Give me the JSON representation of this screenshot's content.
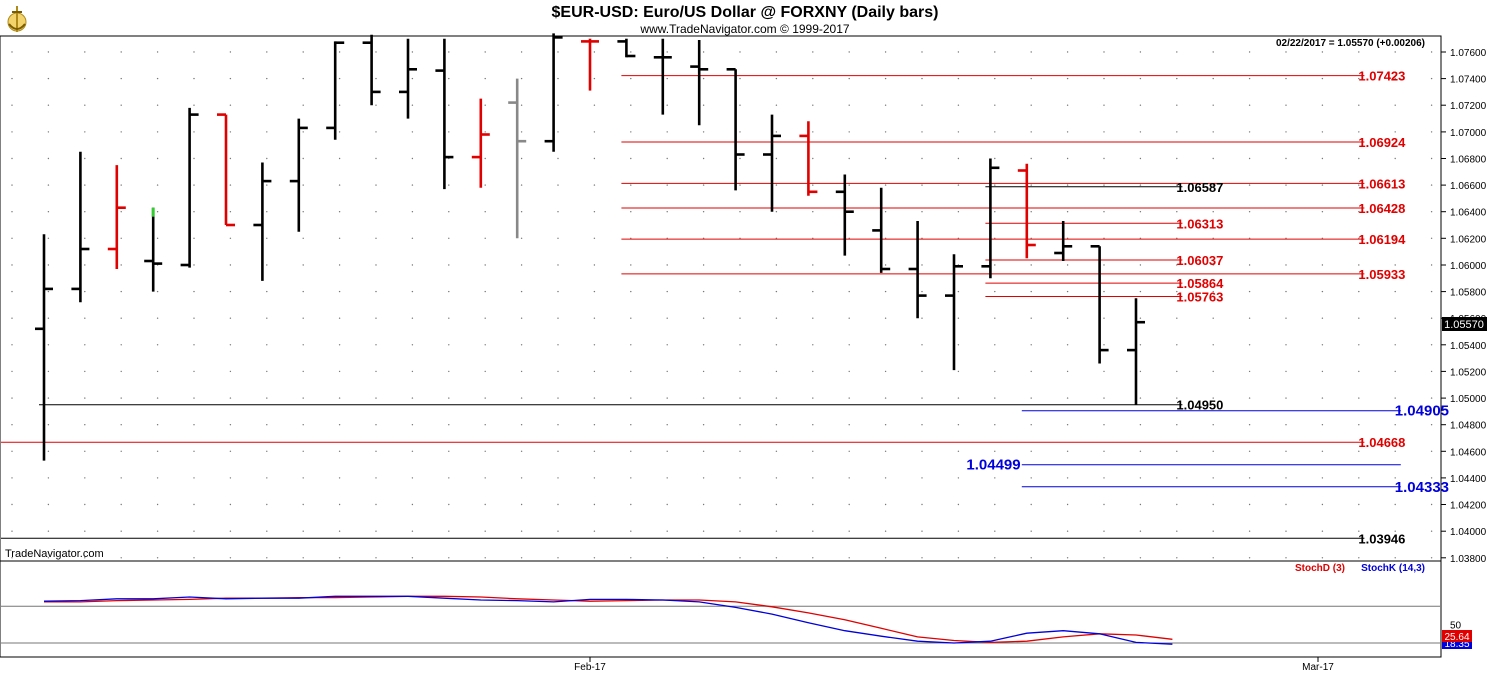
{
  "header": {
    "title": "$EUR-USD:  Euro/US Dollar @ FORXNY  (Daily bars)",
    "subtitle": "www.TradeNavigator.com © 1999-2017",
    "quote": "02/22/2017 = 1.05570 (+0.00206)",
    "watermark": "TradeNavigator.com",
    "last_price_label": "1.05570"
  },
  "colors": {
    "up_bar": "#000000",
    "down_bar": "#e00000",
    "neutral_bar": "#888888",
    "highlight": "#33cc33",
    "red_level": "#e00000",
    "blue_level": "#0000dd",
    "stoch_d": "#e00000",
    "stoch_k": "#0000dd"
  },
  "chart_data": [
    {
      "type": "ohlc",
      "title": "$EUR-USD:  Euro/US Dollar @ FORXNY  (Daily bars)",
      "y_axis": {
        "range": [
          1.038,
          1.077
        ],
        "ticks": [
          "1.07600",
          "1.07400",
          "1.07200",
          "1.07000",
          "1.06800",
          "1.06600",
          "1.06400",
          "1.06200",
          "1.06000",
          "1.05800",
          "1.05600",
          "1.05400",
          "1.05200",
          "1.05000",
          "1.04800",
          "1.04600",
          "1.04400",
          "1.04200",
          "1.04000",
          "1.03800"
        ],
        "position": "right"
      },
      "x_axis": {
        "labels": [
          "Feb-17",
          "Mar-17"
        ]
      },
      "grid": "dotted",
      "bars": [
        {
          "o": 1.0552,
          "h": 1.0623,
          "l": 1.0453,
          "c": 1.0582,
          "color": "black"
        },
        {
          "o": 1.0582,
          "h": 1.0685,
          "l": 1.0572,
          "c": 1.0612,
          "color": "black"
        },
        {
          "o": 1.0612,
          "h": 1.0675,
          "l": 1.0597,
          "c": 1.0643,
          "color": "red"
        },
        {
          "o": 1.0603,
          "h": 1.0643,
          "l": 1.058,
          "c": 1.0601,
          "color": "black",
          "highlight": true
        },
        {
          "o": 1.06,
          "h": 1.0718,
          "l": 1.0598,
          "c": 1.0713,
          "color": "black"
        },
        {
          "o": 1.0713,
          "h": 1.0713,
          "l": 1.063,
          "c": 1.063,
          "color": "red"
        },
        {
          "o": 1.063,
          "h": 1.0677,
          "l": 1.0588,
          "c": 1.0663,
          "color": "black"
        },
        {
          "o": 1.0663,
          "h": 1.071,
          "l": 1.0625,
          "c": 1.0703,
          "color": "black"
        },
        {
          "o": 1.0703,
          "h": 1.0768,
          "l": 1.0694,
          "c": 1.0767,
          "color": "black"
        },
        {
          "o": 1.0767,
          "h": 1.0773,
          "l": 1.072,
          "c": 1.073,
          "color": "black"
        },
        {
          "o": 1.073,
          "h": 1.077,
          "l": 1.071,
          "c": 1.0747,
          "color": "black"
        },
        {
          "o": 1.0746,
          "h": 1.077,
          "l": 1.0657,
          "c": 1.0681,
          "color": "black"
        },
        {
          "o": 1.0681,
          "h": 1.0725,
          "l": 1.0658,
          "c": 1.0698,
          "color": "red"
        },
        {
          "o": 1.0722,
          "h": 1.074,
          "l": 1.062,
          "c": 1.0693,
          "color": "gray"
        },
        {
          "o": 1.0693,
          "h": 1.0774,
          "l": 1.0685,
          "c": 1.0771,
          "color": "black"
        },
        {
          "o": 1.0768,
          "h": 1.077,
          "l": 1.0731,
          "c": 1.0768,
          "color": "red"
        },
        {
          "o": 1.0768,
          "h": 1.077,
          "l": 1.0756,
          "c": 1.0757,
          "color": "black"
        },
        {
          "o": 1.0756,
          "h": 1.077,
          "l": 1.0713,
          "c": 1.0756,
          "color": "black"
        },
        {
          "o": 1.0749,
          "h": 1.0769,
          "l": 1.0705,
          "c": 1.0747,
          "color": "black"
        },
        {
          "o": 1.0747,
          "h": 1.0747,
          "l": 1.0656,
          "c": 1.0683,
          "color": "black"
        },
        {
          "o": 1.0683,
          "h": 1.0713,
          "l": 1.064,
          "c": 1.0697,
          "color": "black"
        },
        {
          "o": 1.0697,
          "h": 1.0708,
          "l": 1.0652,
          "c": 1.0655,
          "color": "red"
        },
        {
          "o": 1.0655,
          "h": 1.0668,
          "l": 1.0607,
          "c": 1.064,
          "color": "black"
        },
        {
          "o": 1.0626,
          "h": 1.0658,
          "l": 1.0594,
          "c": 1.0597,
          "color": "black"
        },
        {
          "o": 1.0597,
          "h": 1.0633,
          "l": 1.056,
          "c": 1.0577,
          "color": "black"
        },
        {
          "o": 1.0577,
          "h": 1.0608,
          "l": 1.0521,
          "c": 1.0599,
          "color": "black"
        },
        {
          "o": 1.0599,
          "h": 1.068,
          "l": 1.059,
          "c": 1.0673,
          "color": "black"
        },
        {
          "o": 1.0671,
          "h": 1.0676,
          "l": 1.0605,
          "c": 1.0615,
          "color": "red"
        },
        {
          "o": 1.0609,
          "h": 1.0633,
          "l": 1.0603,
          "c": 1.0614,
          "color": "black"
        },
        {
          "o": 1.0614,
          "h": 1.0614,
          "l": 1.0526,
          "c": 1.0536,
          "color": "black"
        },
        {
          "o": 1.0536,
          "h": 1.0575,
          "l": 1.0495,
          "c": 1.0557,
          "color": "black"
        }
      ],
      "levels": [
        {
          "value": 1.07423,
          "label": "1.07423",
          "color": "red",
          "from_bar": 16,
          "to_bar": 36,
          "label_at_bar": 36
        },
        {
          "value": 1.06924,
          "label": "1.06924",
          "color": "red",
          "from_bar": 16,
          "to_bar": 36,
          "label_at_bar": 36
        },
        {
          "value": 1.06613,
          "label": "1.06613",
          "color": "red",
          "from_bar": 16,
          "to_bar": 36,
          "label_at_bar": 36
        },
        {
          "value": 1.06587,
          "label": "1.06587",
          "color": "black",
          "from_bar": 26,
          "to_bar": 31,
          "label_at_bar": 31
        },
        {
          "value": 1.06428,
          "label": "1.06428",
          "color": "red",
          "from_bar": 16,
          "to_bar": 36,
          "label_at_bar": 36
        },
        {
          "value": 1.06313,
          "label": "1.06313",
          "color": "red",
          "from_bar": 26,
          "to_bar": 31,
          "label_at_bar": 31
        },
        {
          "value": 1.06194,
          "label": "1.06194",
          "color": "red",
          "from_bar": 16,
          "to_bar": 36,
          "label_at_bar": 36
        },
        {
          "value": 1.06037,
          "label": "1.06037",
          "color": "red",
          "from_bar": 26,
          "to_bar": 31,
          "label_at_bar": 31
        },
        {
          "value": 1.05933,
          "label": "1.05933",
          "color": "red",
          "from_bar": 16,
          "to_bar": 36,
          "label_at_bar": 36
        },
        {
          "value": 1.05864,
          "label": "1.05864",
          "color": "red",
          "from_bar": 26,
          "to_bar": 31,
          "label_at_bar": 31
        },
        {
          "value": 1.05763,
          "label": "1.05763",
          "color": "red",
          "from_bar": 26,
          "to_bar": 31,
          "label_at_bar": 31
        },
        {
          "value": 1.0495,
          "label": "1.04950",
          "color": "black",
          "from_bar": 0,
          "to_bar": 31,
          "label_at_bar": 31
        },
        {
          "value": 1.04905,
          "label": "1.04905",
          "color": "blue",
          "from_bar": 27,
          "to_bar": 37,
          "label_at_bar": 37
        },
        {
          "value": 1.04668,
          "label": "1.04668",
          "color": "red",
          "from_bar": -1,
          "to_bar": 36,
          "label_at_bar": 36
        },
        {
          "value": 1.04499,
          "label": "1.04499",
          "color": "blue",
          "from_bar": 27,
          "to_bar": 37,
          "label_at_bar": 26
        },
        {
          "value": 1.04333,
          "label": "1.04333",
          "color": "blue",
          "from_bar": 27,
          "to_bar": 37,
          "label_at_bar": 37
        },
        {
          "value": 1.03946,
          "label": "1.03946",
          "color": "black",
          "from_bar": -1,
          "to_bar": 36,
          "label_at_bar": 36
        }
      ]
    },
    {
      "type": "line",
      "legend": [
        "StochD (3)",
        "StochK (14,3)"
      ],
      "legend_position": "top-right",
      "y_axis": {
        "range": [
          0,
          100
        ],
        "ticks": [
          "50"
        ]
      },
      "reference_lines": [
        80,
        20
      ],
      "value_labels": [
        "25.64",
        "18.35"
      ],
      "series": [
        {
          "name": "StochD (3)",
          "color": "red",
          "values": [
            87,
            87,
            89,
            90,
            91,
            93,
            93,
            94,
            94,
            95,
            96,
            96,
            95,
            92,
            90,
            88,
            89,
            90,
            90,
            87,
            79,
            69,
            58,
            44,
            30,
            24,
            21,
            23,
            30,
            35,
            33,
            26
          ]
        },
        {
          "name": "StochK (14,3)",
          "color": "blue",
          "values": [
            88,
            89,
            92,
            92,
            95,
            92,
            93,
            93,
            96,
            96,
            96,
            93,
            90,
            89,
            87,
            91,
            91,
            90,
            87,
            78,
            67,
            53,
            40,
            31,
            23,
            20,
            23,
            36,
            40,
            35,
            21,
            18
          ]
        }
      ]
    }
  ]
}
